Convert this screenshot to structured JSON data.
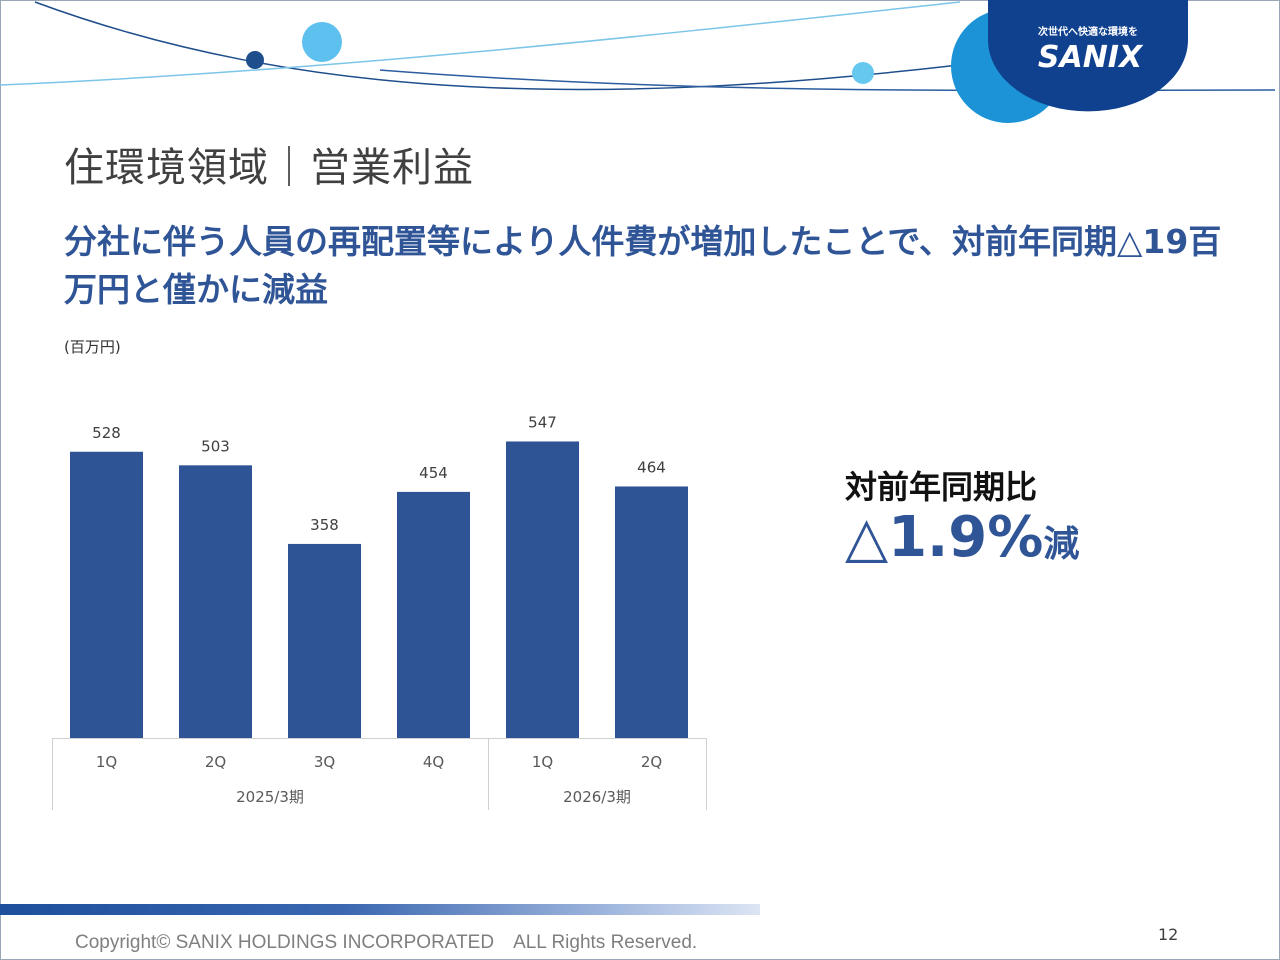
{
  "header": {
    "logo_tagline": "次世代へ快適な環境を",
    "logo_brand": "SANIX"
  },
  "page_title": "住環境領域｜営業利益",
  "headline": "分社に伴う人員の再配置等により人件費が増加したことで、対前年同期△19百万円と僅かに減益",
  "unit_label": "(百万円)",
  "yoy": {
    "title": "対前年同期比",
    "value": "△1.9%",
    "suffix": "減"
  },
  "colors": {
    "bar": "#2f5496",
    "accent_text": "#2f5597"
  },
  "chart_data": {
    "type": "bar",
    "categories": [
      "1Q",
      "2Q",
      "3Q",
      "4Q",
      "1Q",
      "2Q"
    ],
    "groups": [
      {
        "label": "2025/3期",
        "categories": [
          "1Q",
          "2Q",
          "3Q",
          "4Q"
        ]
      },
      {
        "label": "2026/3期",
        "categories": [
          "1Q",
          "2Q"
        ]
      }
    ],
    "values": [
      528,
      503,
      358,
      454,
      547,
      464
    ],
    "data_labels": [
      "528",
      "503",
      "358",
      "454",
      "547",
      "464"
    ],
    "ylim": [
      0,
      570
    ],
    "grid": false,
    "legend": "none"
  },
  "footer": {
    "copyright": "Copyright© SANIX HOLDINGS INCORPORATED　ALL Rights Reserved.",
    "page_number": "12"
  }
}
